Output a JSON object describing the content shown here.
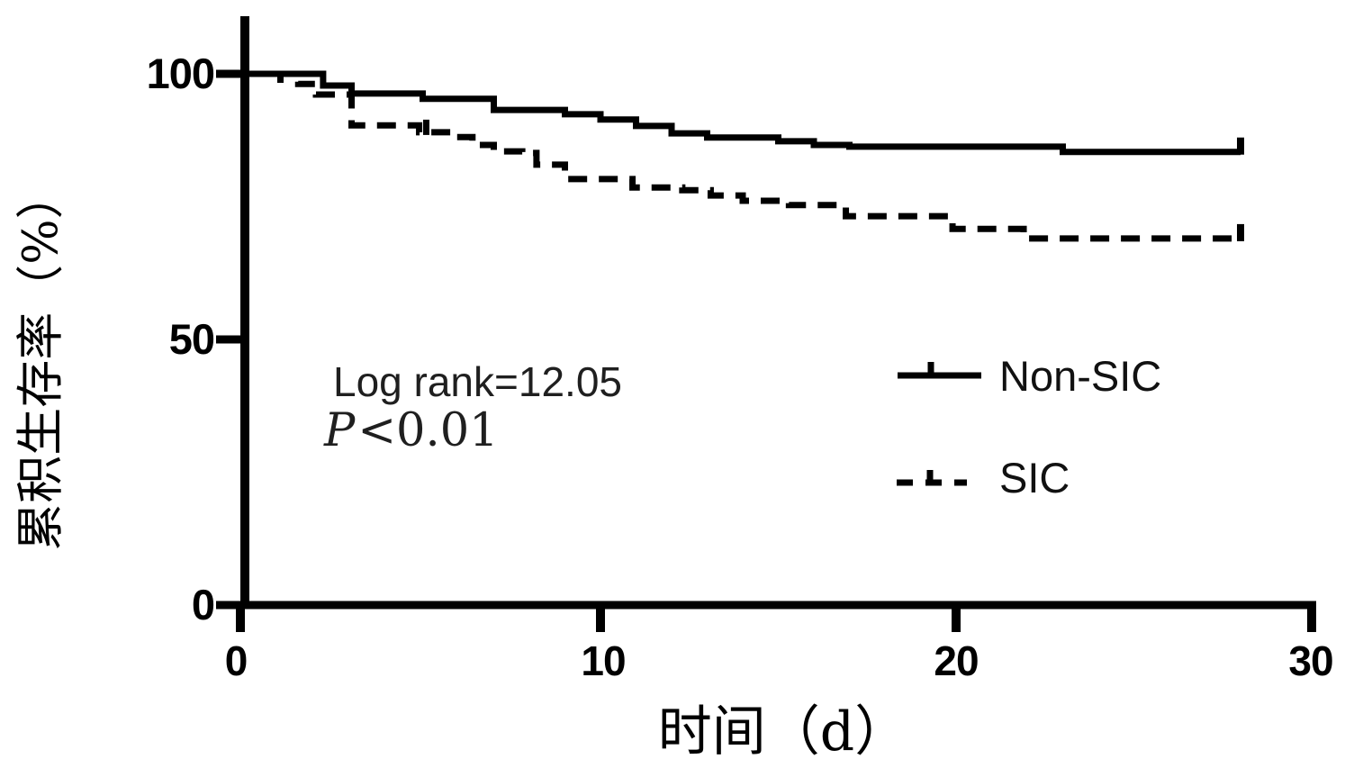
{
  "figure": {
    "background": "#ffffff",
    "ink": "#000000"
  },
  "chart_data": {
    "type": "line",
    "subtype": "kaplan_meier_step_curve",
    "title": "",
    "xlabel": "时间（d）",
    "ylabel": "累积生存率（%）",
    "xlim": [
      0,
      30
    ],
    "ylim": [
      0,
      110
    ],
    "grid": false,
    "x_ticks": [
      0,
      10,
      20,
      30
    ],
    "y_ticks": [
      100,
      50,
      0
    ],
    "x_tick_labels": [
      "0",
      "10",
      "20",
      "30"
    ],
    "y_tick_labels": [
      "100",
      "50",
      "0"
    ],
    "legend_position": "center-right",
    "statistics": {
      "log_rank": "Log rank=12.05",
      "p_italic": "P",
      "p_rest": "<0.01"
    },
    "series": [
      {
        "name": "Non-SIC",
        "line_style": "solid",
        "color": "#000000",
        "steps": [
          [
            0,
            100
          ],
          [
            2.2,
            97.8
          ],
          [
            3,
            96.3
          ],
          [
            5,
            95.3
          ],
          [
            7,
            93.2
          ],
          [
            9,
            92.4
          ],
          [
            10,
            91.4
          ],
          [
            11,
            90.2
          ],
          [
            12,
            88.8
          ],
          [
            13,
            88.0
          ],
          [
            15,
            87.3
          ],
          [
            16,
            86.6
          ],
          [
            17,
            86.3
          ],
          [
            23,
            85.3
          ],
          [
            28,
            85.3
          ]
        ],
        "censor_marks": [
          [
            1,
            100,
            "down"
          ]
        ],
        "end_tick_day": 28
      },
      {
        "name": "SIC",
        "line_style": "dashed",
        "color": "#000000",
        "steps": [
          [
            0,
            100
          ],
          [
            1.5,
            98.1
          ],
          [
            2,
            96.1
          ],
          [
            3,
            90.3
          ],
          [
            4.9,
            89.0
          ],
          [
            5.8,
            88.1
          ],
          [
            6.4,
            86.6
          ],
          [
            7,
            85.4
          ],
          [
            7.8,
            85.1
          ],
          [
            8.2,
            82.9
          ],
          [
            9,
            80.2
          ],
          [
            10.9,
            78.6
          ],
          [
            12.3,
            78.1
          ],
          [
            13.1,
            77.1
          ],
          [
            14,
            76.1
          ],
          [
            15.3,
            75.3
          ],
          [
            16.9,
            73.2
          ],
          [
            19.9,
            70.8
          ],
          [
            21.9,
            69.0
          ],
          [
            28,
            69.0
          ]
        ],
        "censor_marks": [
          [
            5.1,
            89.0,
            "up"
          ]
        ],
        "end_tick_day": 28
      }
    ]
  },
  "legend": {
    "items": [
      {
        "label": "Non-SIC",
        "style": "solid"
      },
      {
        "label": "SIC",
        "style": "dashed"
      }
    ]
  }
}
